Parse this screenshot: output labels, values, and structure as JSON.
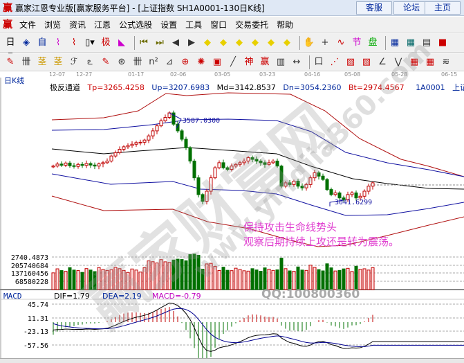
{
  "window": {
    "title": "赢家江恩专业版[赢家服务平台] - [上证指数  SH1A0001-130日K线]",
    "logo": "赢",
    "buttons": [
      "客服",
      "论坛",
      "主页"
    ]
  },
  "menu": {
    "logo": "赢",
    "items": [
      "文件",
      "浏览",
      "资讯",
      "江恩",
      "公式选股",
      "设置",
      "工具",
      "窗口",
      "交易委托",
      "帮助"
    ]
  },
  "toolbar1": [
    {
      "g": "日▾",
      "c": "#000",
      "n": "period-dropdown"
    },
    {
      "g": "◈",
      "c": "#00279c",
      "n": "window-icon"
    },
    {
      "g": "自",
      "c": "#00279c",
      "n": "custom-icon"
    },
    {
      "g": "⌇",
      "c": "#c0c",
      "n": "indicator3-icon"
    },
    {
      "g": "⌇",
      "c": "#c00",
      "n": "indicator9-icon"
    },
    {
      "g": "▯▾",
      "c": "#000",
      "n": "candle-type-dropdown"
    },
    {
      "g": "极",
      "c": "#c00",
      "n": "extreme-icon"
    },
    {
      "g": "◣",
      "c": "#c0c",
      "n": "color-icon"
    },
    {
      "g": "⏮",
      "c": "#6b6b00",
      "n": "first-icon"
    },
    {
      "g": "⏭",
      "c": "#6b6b00",
      "n": "last-icon"
    },
    {
      "g": "◀",
      "c": "#333",
      "n": "prev-icon"
    },
    {
      "g": "▶",
      "c": "#333",
      "n": "next-icon"
    },
    {
      "g": "◆",
      "c": "#e8d000",
      "n": "zoom-in-icon"
    },
    {
      "g": "◆",
      "c": "#e8d000",
      "n": "zoom-out-icon"
    },
    {
      "g": "◆",
      "c": "#e8d000",
      "n": "expand-icon"
    },
    {
      "g": "◆",
      "c": "#e8d000",
      "n": "shrink-icon"
    },
    {
      "g": "◆",
      "c": "#e8d000",
      "n": "vexpand-icon"
    },
    {
      "g": "◆",
      "c": "#e8d000",
      "n": "vshrink-icon"
    },
    {
      "g": "✋",
      "c": "#333",
      "n": "hand-icon"
    },
    {
      "g": "+",
      "c": "#333",
      "n": "crosshair-icon"
    },
    {
      "g": "∿",
      "c": "#c00",
      "n": "line-icon"
    },
    {
      "g": "节",
      "c": "#c0c",
      "n": "festival-icon"
    },
    {
      "g": "盘",
      "c": "#0a0",
      "n": "board-icon"
    },
    {
      "g": "▦",
      "c": "#00279c",
      "n": "calendar-icon"
    },
    {
      "g": "▦",
      "c": "#066",
      "n": "calculator-icon"
    },
    {
      "g": "▤",
      "c": "#333",
      "n": "notes-icon"
    },
    {
      "g": "■",
      "c": "#c00",
      "n": "save-icon"
    }
  ],
  "toolbar2": [
    {
      "g": "✎",
      "c": "#c00",
      "n": "pen-icon"
    },
    {
      "g": "卌",
      "c": "#333",
      "n": "gann-grid-icon"
    },
    {
      "g": "茎",
      "c": "#c90",
      "n": "gold1-icon"
    },
    {
      "g": "茎",
      "c": "#c90",
      "n": "gold2-icon"
    },
    {
      "g": "ℱ",
      "c": "#333",
      "n": "fib-icon"
    },
    {
      "g": "ఽ",
      "c": "#333",
      "n": "spiral-icon"
    },
    {
      "g": "✎",
      "c": "#c00",
      "n": "pen2-icon"
    },
    {
      "g": "⊛",
      "c": "#333",
      "n": "circle-icon"
    },
    {
      "g": "卌",
      "c": "#333",
      "n": "grid-icon"
    },
    {
      "g": "n²",
      "c": "#333",
      "n": "square-icon"
    },
    {
      "g": "⊿",
      "c": "#333",
      "n": "angle-icon"
    },
    {
      "g": "⊕",
      "c": "#c00",
      "n": "target-icon"
    },
    {
      "g": "✺",
      "c": "#c00",
      "n": "star-icon"
    },
    {
      "g": "▣",
      "c": "#c00",
      "n": "box-icon"
    },
    {
      "g": "╱",
      "c": "#333",
      "n": "trend-icon"
    },
    {
      "g": "神",
      "c": "#c00",
      "n": "god-icon"
    },
    {
      "g": "赢",
      "c": "#c00",
      "n": "win-icon"
    },
    {
      "g": "▥",
      "c": "#333",
      "n": "count-icon"
    },
    {
      "g": "↔",
      "c": "#333",
      "n": "measure-icon"
    },
    {
      "g": "口",
      "c": "#333",
      "n": "rect-icon"
    },
    {
      "g": "⋰",
      "c": "#c00",
      "n": "fan-icon"
    },
    {
      "g": "▨",
      "c": "#c00",
      "n": "square2-icon"
    },
    {
      "g": "▧",
      "c": "#c00",
      "n": "square3-icon"
    },
    {
      "g": "∠",
      "c": "#333",
      "n": "angle2-icon"
    },
    {
      "g": "⋁",
      "c": "#333",
      "n": "wave-icon"
    },
    {
      "g": "▦",
      "c": "#c00",
      "n": "grid2-icon"
    },
    {
      "g": "▦",
      "c": "#c00",
      "n": "grid3-icon"
    },
    {
      "g": "≋",
      "c": "#333",
      "n": "parallel-icon"
    }
  ],
  "dates": [
    "12-07",
    "12-27",
    "01-17",
    "02-06",
    "03-05",
    "03-23",
    "04-16",
    "05-08",
    "05-28",
    "06-15"
  ],
  "period": "日K线",
  "indicator": {
    "name": "极反通道",
    "tp": "Tp=3265.4258",
    "up": "Up=3207.6983",
    "md": "Md=3142.8537",
    "dn": "Dn=3054.2360",
    "bt": "Bt=2974.4567",
    "code": "1A0001",
    "stock": "上证指数"
  },
  "chart_data": {
    "type": "candlestick",
    "high_label": "3587.0300",
    "low_label": "3041.6299",
    "high": 3587.03,
    "low": 3041.63,
    "closes": [
      3270,
      3282,
      3275,
      3288,
      3272,
      3268,
      3280,
      3274,
      3285,
      3276,
      3270,
      3283,
      3290,
      3300,
      3330,
      3350,
      3370,
      3385,
      3392,
      3400,
      3410,
      3412,
      3425,
      3450,
      3480,
      3510,
      3540,
      3560,
      3587,
      3520,
      3480,
      3430,
      3380,
      3300,
      3200,
      3100,
      3060,
      3120,
      3200,
      3260,
      3290,
      3260,
      3250,
      3270,
      3280,
      3290,
      3300,
      3320,
      3310,
      3300,
      3290,
      3280,
      3290,
      3300,
      3270,
      3150,
      3170,
      3160,
      3180,
      3150,
      3140,
      3160,
      3200,
      3230,
      3210,
      3190,
      3130,
      3100,
      3110,
      3080,
      3070,
      3100,
      3110,
      3080,
      3090,
      3120,
      3150,
      3170
    ]
  },
  "volume": {
    "labels": [
      "2740.4873",
      "205740684",
      "137160456",
      "68580228"
    ]
  },
  "macd": {
    "name": "MACD",
    "dif": "DIF=1.79",
    "dea": "DEA=2.19",
    "macd": "MACD=-0.79",
    "labels": [
      "45.74",
      "11.31",
      "-23.13",
      "-57.56"
    ]
  },
  "annotation": [
    "保持攻击生命线势头",
    "观察后期持续上攻还是转为震荡。"
  ],
  "watermark": {
    "brand": "赢家财富网",
    "site": "www.yingjia360.com",
    "qq": "QQ:100800360"
  },
  "colors": {
    "up": "#c00000",
    "down": "#007000",
    "dif": "#000000",
    "dea": "#000090",
    "macd": "#c000c0",
    "band_outer": "#b01010",
    "band_inner": "#1010a0"
  }
}
